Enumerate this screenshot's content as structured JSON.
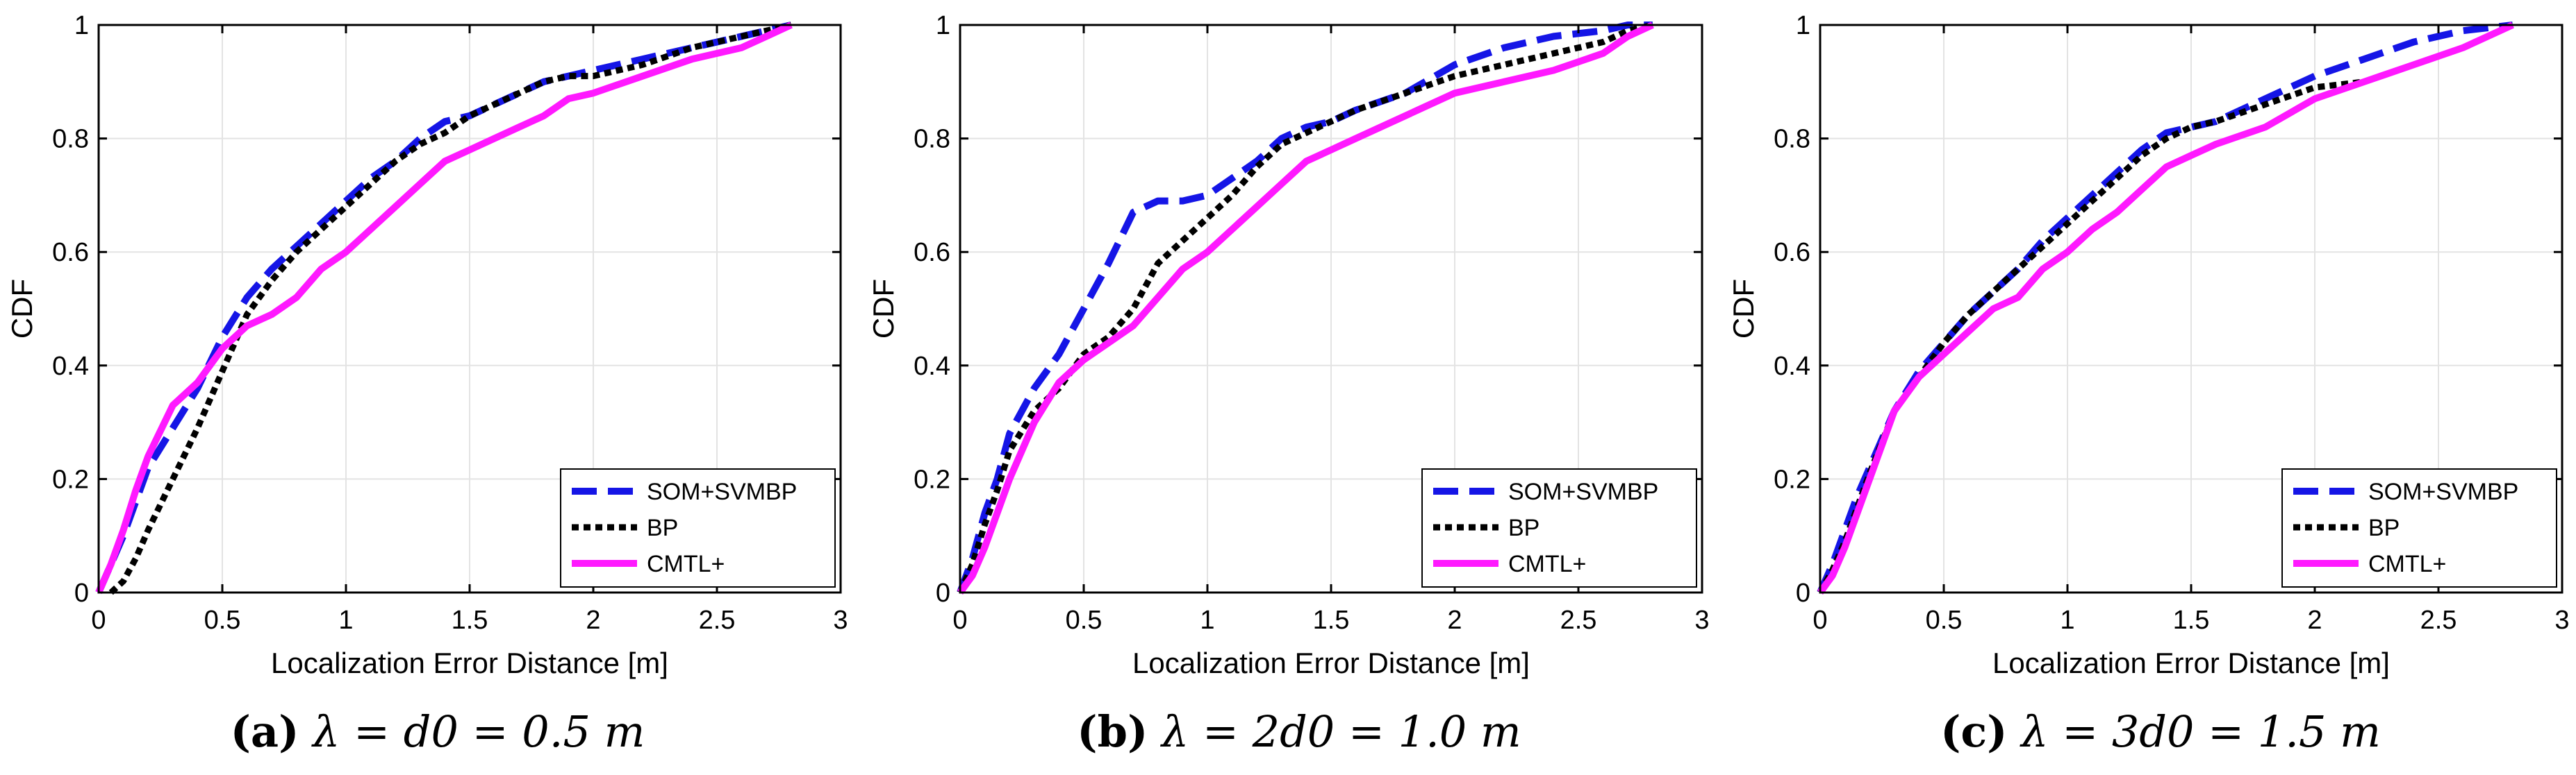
{
  "figure": {
    "captions": [
      {
        "label": "(a)",
        "math": "λ = d0 = 0.5 m"
      },
      {
        "label": "(b)",
        "math": "λ = 2d0 = 1.0 m"
      },
      {
        "label": "(c)",
        "math": "λ = 3d0 = 1.5 m"
      }
    ]
  },
  "colors": {
    "som": "#1515e6",
    "bp": "#000000",
    "cmtl": "#ff19ff",
    "grid": "#e3e3e3"
  },
  "chart_data": [
    {
      "type": "line",
      "title": "",
      "xlabel": "Localization Error Distance [m]",
      "ylabel": "CDF",
      "xlim": [
        0,
        3
      ],
      "ylim": [
        0,
        1
      ],
      "xticks": [
        0,
        0.5,
        1,
        1.5,
        2,
        2.5,
        3
      ],
      "xticklabels": [
        "0",
        "0.5",
        "1",
        "1.5",
        "2",
        "2.5",
        "3"
      ],
      "yticks": [
        0,
        0.2,
        0.4,
        0.6,
        0.8,
        1
      ],
      "yticklabels": [
        "0",
        "0.2",
        "0.4",
        "0.6",
        "0.8",
        "1"
      ],
      "grid": true,
      "legend": "bottom-right",
      "series": [
        {
          "name": "SOM+SVMBP",
          "style": "dashed",
          "x": [
            0,
            0.05,
            0.1,
            0.15,
            0.2,
            0.3,
            0.4,
            0.5,
            0.6,
            0.7,
            0.8,
            0.9,
            1.0,
            1.1,
            1.2,
            1.3,
            1.4,
            1.5,
            1.6,
            1.7,
            1.8,
            1.9,
            2.0,
            2.2,
            2.4,
            2.6,
            2.7,
            2.8
          ],
          "y": [
            0,
            0.05,
            0.1,
            0.16,
            0.22,
            0.29,
            0.36,
            0.45,
            0.52,
            0.57,
            0.61,
            0.65,
            0.69,
            0.73,
            0.76,
            0.8,
            0.83,
            0.84,
            0.86,
            0.88,
            0.9,
            0.91,
            0.92,
            0.94,
            0.96,
            0.98,
            0.99,
            1.0
          ]
        },
        {
          "name": "BP",
          "style": "dotted",
          "x": [
            0.05,
            0.1,
            0.15,
            0.2,
            0.3,
            0.4,
            0.5,
            0.6,
            0.7,
            0.8,
            0.9,
            1.0,
            1.1,
            1.2,
            1.3,
            1.4,
            1.5,
            1.6,
            1.7,
            1.8,
            1.9,
            2.0,
            2.2,
            2.4,
            2.6,
            2.7,
            2.8
          ],
          "y": [
            0,
            0.02,
            0.06,
            0.11,
            0.2,
            0.29,
            0.39,
            0.49,
            0.55,
            0.6,
            0.64,
            0.68,
            0.72,
            0.76,
            0.79,
            0.81,
            0.84,
            0.86,
            0.88,
            0.9,
            0.91,
            0.91,
            0.93,
            0.96,
            0.98,
            0.99,
            1.0
          ]
        },
        {
          "name": "CMTL+",
          "style": "solid",
          "x": [
            0,
            0.05,
            0.1,
            0.15,
            0.2,
            0.3,
            0.4,
            0.5,
            0.6,
            0.7,
            0.8,
            0.9,
            1.0,
            1.1,
            1.2,
            1.3,
            1.4,
            1.5,
            1.6,
            1.7,
            1.8,
            1.9,
            2.0,
            2.2,
            2.4,
            2.6,
            2.7,
            2.8
          ],
          "y": [
            0,
            0.05,
            0.11,
            0.18,
            0.24,
            0.33,
            0.37,
            0.43,
            0.47,
            0.49,
            0.52,
            0.57,
            0.6,
            0.64,
            0.68,
            0.72,
            0.76,
            0.78,
            0.8,
            0.82,
            0.84,
            0.87,
            0.88,
            0.91,
            0.94,
            0.96,
            0.98,
            1.0
          ]
        }
      ]
    },
    {
      "type": "line",
      "title": "",
      "xlabel": "Localization Error Distance [m]",
      "ylabel": "CDF",
      "xlim": [
        0,
        3
      ],
      "ylim": [
        0,
        1
      ],
      "xticks": [
        0,
        0.5,
        1,
        1.5,
        2,
        2.5,
        3
      ],
      "xticklabels": [
        "0",
        "0.5",
        "1",
        "1.5",
        "2",
        "2.5",
        "3"
      ],
      "yticks": [
        0,
        0.2,
        0.4,
        0.6,
        0.8,
        1
      ],
      "yticklabels": [
        "0",
        "0.2",
        "0.4",
        "0.6",
        "0.8",
        "1"
      ],
      "grid": true,
      "legend": "bottom-right",
      "series": [
        {
          "name": "SOM+SVMBP",
          "style": "dashed",
          "x": [
            0,
            0.05,
            0.1,
            0.15,
            0.2,
            0.3,
            0.4,
            0.5,
            0.6,
            0.7,
            0.8,
            0.9,
            1.0,
            1.1,
            1.2,
            1.3,
            1.4,
            1.5,
            1.6,
            1.8,
            2.0,
            2.2,
            2.4,
            2.6,
            2.7,
            2.8
          ],
          "y": [
            0,
            0.06,
            0.14,
            0.2,
            0.28,
            0.36,
            0.42,
            0.5,
            0.58,
            0.67,
            0.69,
            0.69,
            0.7,
            0.73,
            0.76,
            0.8,
            0.82,
            0.83,
            0.85,
            0.88,
            0.93,
            0.96,
            0.98,
            0.99,
            1.0,
            1.0
          ]
        },
        {
          "name": "BP",
          "style": "dotted",
          "x": [
            0,
            0.05,
            0.1,
            0.15,
            0.2,
            0.3,
            0.4,
            0.5,
            0.6,
            0.7,
            0.8,
            0.9,
            1.0,
            1.1,
            1.2,
            1.3,
            1.4,
            1.5,
            1.6,
            1.8,
            2.0,
            2.2,
            2.4,
            2.6,
            2.7,
            2.8
          ],
          "y": [
            0,
            0.05,
            0.12,
            0.18,
            0.25,
            0.32,
            0.36,
            0.42,
            0.45,
            0.5,
            0.58,
            0.62,
            0.66,
            0.7,
            0.75,
            0.79,
            0.81,
            0.83,
            0.85,
            0.88,
            0.91,
            0.93,
            0.95,
            0.97,
            0.99,
            1.0
          ]
        },
        {
          "name": "CMTL+",
          "style": "solid",
          "x": [
            0,
            0.05,
            0.1,
            0.15,
            0.2,
            0.3,
            0.4,
            0.5,
            0.6,
            0.7,
            0.8,
            0.9,
            1.0,
            1.1,
            1.2,
            1.3,
            1.4,
            1.5,
            1.6,
            1.8,
            2.0,
            2.2,
            2.4,
            2.6,
            2.7,
            2.8
          ],
          "y": [
            0,
            0.03,
            0.08,
            0.14,
            0.2,
            0.3,
            0.37,
            0.41,
            0.44,
            0.47,
            0.52,
            0.57,
            0.6,
            0.64,
            0.68,
            0.72,
            0.76,
            0.78,
            0.8,
            0.84,
            0.88,
            0.9,
            0.92,
            0.95,
            0.98,
            1.0
          ]
        }
      ]
    },
    {
      "type": "line",
      "title": "",
      "xlabel": "Localization Error Distance [m]",
      "ylabel": "CDF",
      "xlim": [
        0,
        3
      ],
      "ylim": [
        0,
        1
      ],
      "xticks": [
        0,
        0.5,
        1,
        1.5,
        2,
        2.5,
        3
      ],
      "xticklabels": [
        "0",
        "0.5",
        "1",
        "1.5",
        "2",
        "2.5",
        "3"
      ],
      "yticks": [
        0,
        0.2,
        0.4,
        0.6,
        0.8,
        1
      ],
      "yticklabels": [
        "0",
        "0.2",
        "0.4",
        "0.6",
        "0.8",
        "1"
      ],
      "grid": true,
      "legend": "bottom-right",
      "series": [
        {
          "name": "SOM+SVMBP",
          "style": "dashed",
          "x": [
            0,
            0.05,
            0.1,
            0.15,
            0.2,
            0.3,
            0.4,
            0.5,
            0.6,
            0.7,
            0.8,
            0.9,
            1.0,
            1.1,
            1.2,
            1.3,
            1.4,
            1.5,
            1.6,
            1.8,
            2.0,
            2.2,
            2.4,
            2.6,
            2.8
          ],
          "y": [
            0,
            0.05,
            0.11,
            0.17,
            0.22,
            0.32,
            0.39,
            0.44,
            0.49,
            0.53,
            0.57,
            0.62,
            0.66,
            0.7,
            0.74,
            0.78,
            0.81,
            0.82,
            0.83,
            0.87,
            0.91,
            0.94,
            0.97,
            0.99,
            1.0
          ]
        },
        {
          "name": "BP",
          "style": "dotted",
          "x": [
            0,
            0.05,
            0.1,
            0.15,
            0.2,
            0.3,
            0.4,
            0.5,
            0.6,
            0.7,
            0.8,
            0.9,
            1.0,
            1.1,
            1.2,
            1.3,
            1.4,
            1.5,
            1.6,
            1.8,
            2.0,
            2.2,
            2.4,
            2.6,
            2.8
          ],
          "y": [
            0,
            0.04,
            0.09,
            0.15,
            0.21,
            0.32,
            0.38,
            0.44,
            0.49,
            0.53,
            0.57,
            0.61,
            0.65,
            0.69,
            0.73,
            0.77,
            0.8,
            0.82,
            0.83,
            0.86,
            0.89,
            0.9,
            0.93,
            0.96,
            1.0
          ]
        },
        {
          "name": "CMTL+",
          "style": "solid",
          "x": [
            0,
            0.05,
            0.1,
            0.15,
            0.2,
            0.3,
            0.4,
            0.5,
            0.6,
            0.7,
            0.8,
            0.9,
            1.0,
            1.1,
            1.2,
            1.3,
            1.4,
            1.5,
            1.6,
            1.8,
            2.0,
            2.2,
            2.4,
            2.6,
            2.8
          ],
          "y": [
            0,
            0.03,
            0.08,
            0.14,
            0.2,
            0.32,
            0.38,
            0.42,
            0.46,
            0.5,
            0.52,
            0.57,
            0.6,
            0.64,
            0.67,
            0.71,
            0.75,
            0.77,
            0.79,
            0.82,
            0.87,
            0.9,
            0.93,
            0.96,
            1.0
          ]
        }
      ]
    }
  ]
}
